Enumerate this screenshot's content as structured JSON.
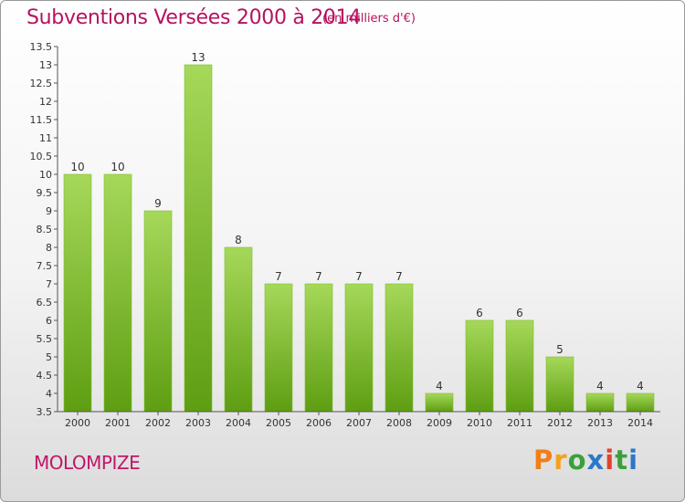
{
  "header": {
    "title": "Subventions Versées 2000 à 2014",
    "subtitle": "(en milliers d'€)"
  },
  "footer": {
    "commune": "MOLOMPIZE",
    "logo_text": "Proxiti"
  },
  "colors": {
    "title": "#b5135e",
    "bar_top": "#a6d85a",
    "bar_bottom": "#5e9e12",
    "logo_letters": [
      "#f07f1a",
      "#f4a21c",
      "#3aa13a",
      "#2b78c8",
      "#e0432c",
      "#3aa13a",
      "#2b78c8"
    ]
  },
  "chart_data": {
    "type": "bar",
    "categories": [
      "2000",
      "2001",
      "2002",
      "2003",
      "2004",
      "2005",
      "2006",
      "2007",
      "2008",
      "2009",
      "2010",
      "2011",
      "2012",
      "2013",
      "2014"
    ],
    "values": [
      10,
      10,
      9,
      13,
      8,
      7,
      7,
      7,
      7,
      4,
      6,
      6,
      5,
      4,
      4
    ],
    "title": "Subventions Versées 2000 à 2014",
    "ylim": [
      3.5,
      13.5
    ],
    "yticks": [
      "3.5",
      "4",
      "4.5",
      "5",
      "5.5",
      "6",
      "6.5",
      "7",
      "7.5",
      "8",
      "8.5",
      "9",
      "9.5",
      "10",
      "10.5",
      "11",
      "11.5",
      "12",
      "12.5",
      "13",
      "13.5"
    ],
    "grid": false,
    "legend": "none"
  }
}
